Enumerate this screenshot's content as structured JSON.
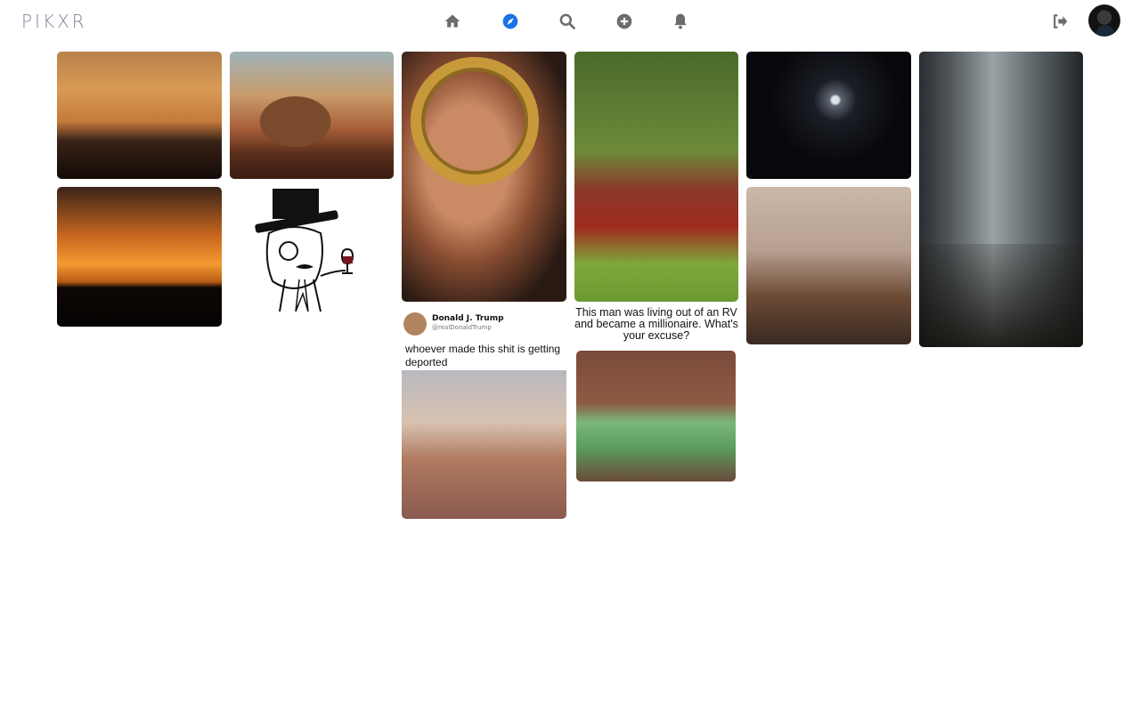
{
  "app": {
    "logo": "PIKXR"
  },
  "nav": {
    "items": [
      {
        "name": "home",
        "icon": "home-icon",
        "active": false
      },
      {
        "name": "explore",
        "icon": "compass-icon",
        "active": true
      },
      {
        "name": "search",
        "icon": "search-icon",
        "active": false
      },
      {
        "name": "create",
        "icon": "plus-circle-icon",
        "active": false
      },
      {
        "name": "notifications",
        "icon": "bell-icon",
        "active": false
      }
    ],
    "logout_icon": "sign-out-icon",
    "active_color": "#1a73e8",
    "inactive_color": "#6c6c6c"
  },
  "feed": {
    "tweet": {
      "name": "Donald J. Trump",
      "handle": "@realDonaldTrump",
      "text": "whoever made this shit is getting deported"
    },
    "rv_meme": {
      "caption": "This man was living out of an RV and became a millionaire. What's your excuse?"
    }
  }
}
